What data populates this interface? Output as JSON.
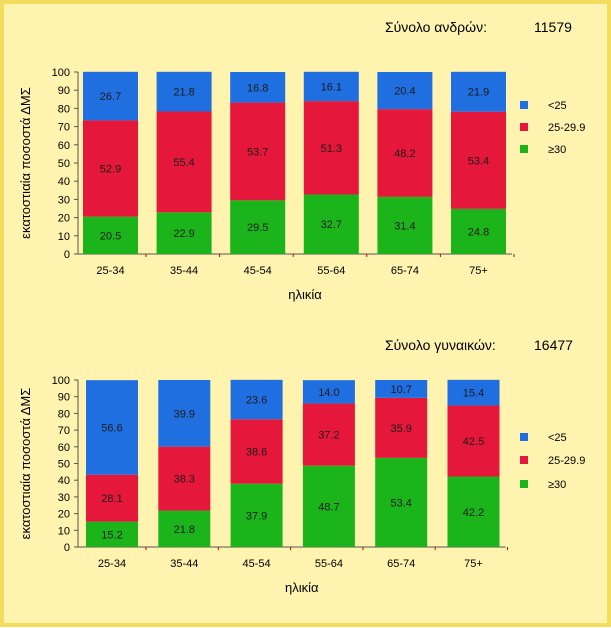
{
  "chart_data": [
    {
      "type": "bar",
      "stacked": true,
      "total_label": "Σύνολο ανδρών:",
      "total_value": "11579",
      "ylabel": "εκατοστιαία ποσοστά ΔΜΣ",
      "xlabel": "ηλικία",
      "categories": [
        "25-34",
        "35-44",
        "45-54",
        "55-64",
        "65-74",
        "75+"
      ],
      "yticks": [
        "0",
        "10",
        "20",
        "30",
        "40",
        "50",
        "60",
        "70",
        "80",
        "90",
        "100"
      ],
      "ylim": [
        0,
        100
      ],
      "legend_position": "right",
      "series": [
        {
          "name": "≥30",
          "color": "#1bb51b",
          "values": [
            20.5,
            22.9,
            29.5,
            32.7,
            31.4,
            24.8
          ]
        },
        {
          "name": "25-29.9",
          "color": "#e5173a",
          "values": [
            52.9,
            55.4,
            53.7,
            51.3,
            48.2,
            53.4
          ]
        },
        {
          "name": "<25",
          "color": "#1f6fe0",
          "values": [
            26.7,
            21.8,
            16.8,
            16.1,
            20.4,
            21.9
          ]
        }
      ]
    },
    {
      "type": "bar",
      "stacked": true,
      "total_label": "Σύνολο γυναικών:",
      "total_value": "16477",
      "ylabel": "εκατοστιαία ποσοστά ΔΜΣ",
      "xlabel": "ηλικία",
      "categories": [
        "25-34",
        "35-44",
        "45-54",
        "55-64",
        "65-74",
        "75+"
      ],
      "yticks": [
        "0",
        "10",
        "20",
        "30",
        "40",
        "50",
        "60",
        "70",
        "80",
        "90",
        "100"
      ],
      "ylim": [
        0,
        100
      ],
      "legend_position": "right",
      "series": [
        {
          "name": "≥30",
          "color": "#1bb51b",
          "values": [
            15.2,
            21.8,
            37.9,
            48.7,
            53.4,
            42.2
          ]
        },
        {
          "name": "25-29.9",
          "color": "#e5173a",
          "values": [
            28.1,
            38.3,
            38.6,
            37.2,
            35.9,
            42.5
          ]
        },
        {
          "name": "<25",
          "color": "#1f6fe0",
          "values": [
            56.6,
            39.9,
            23.6,
            14.0,
            10.7,
            15.4
          ]
        }
      ]
    }
  ]
}
